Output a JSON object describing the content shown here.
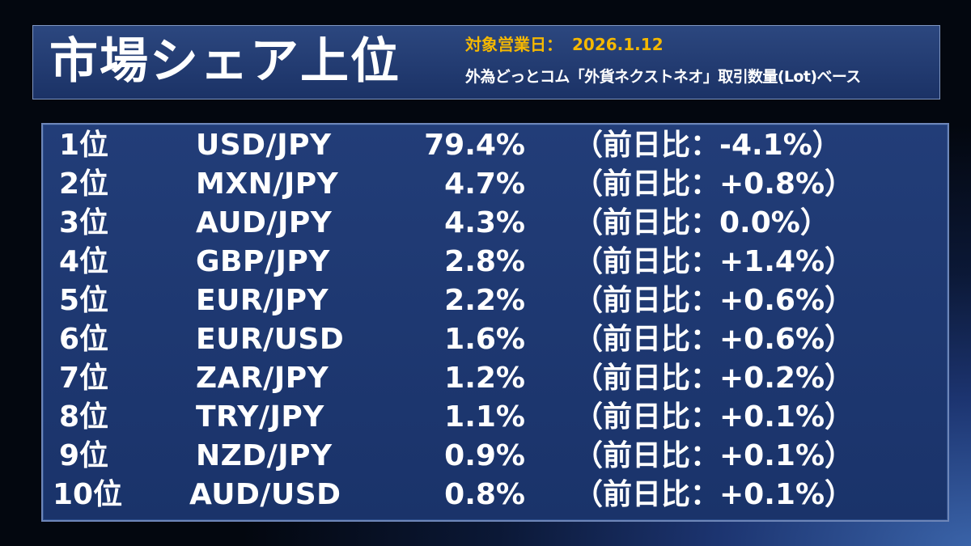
{
  "header": {
    "title": "市場シェア上位",
    "date_label": "対象営業日：",
    "date_value": "2026.1.12",
    "basis": "外為どっとコム「外貨ネクストネオ」取引数量(Lot)ベース"
  },
  "rankings": [
    {
      "rank": "1位",
      "pair": "USD/JPY",
      "share": "79.4%",
      "change": "（前日比：-4.1%）"
    },
    {
      "rank": "2位",
      "pair": "MXN/JPY",
      "share": "4.7%",
      "change": "（前日比：+0.8%）"
    },
    {
      "rank": "3位",
      "pair": "AUD/JPY",
      "share": "4.3%",
      "change": "（前日比：0.0%）"
    },
    {
      "rank": "4位",
      "pair": "GBP/JPY",
      "share": "2.8%",
      "change": "（前日比：+1.4%）"
    },
    {
      "rank": "5位",
      "pair": "EUR/JPY",
      "share": "2.2%",
      "change": "（前日比：+0.6%）"
    },
    {
      "rank": "6位",
      "pair": "EUR/USD",
      "share": "1.6%",
      "change": "（前日比：+0.6%）"
    },
    {
      "rank": "7位",
      "pair": "ZAR/JPY",
      "share": "1.2%",
      "change": "（前日比：+0.2%）"
    },
    {
      "rank": "8位",
      "pair": "TRY/JPY",
      "share": "1.1%",
      "change": "（前日比：+0.1%）"
    },
    {
      "rank": "9位",
      "pair": "NZD/JPY",
      "share": "0.9%",
      "change": "（前日比：+0.1%）"
    },
    {
      "rank": "10位",
      "pair": "AUD/USD",
      "share": "0.8%",
      "change": "（前日比：+0.1%）"
    }
  ]
}
